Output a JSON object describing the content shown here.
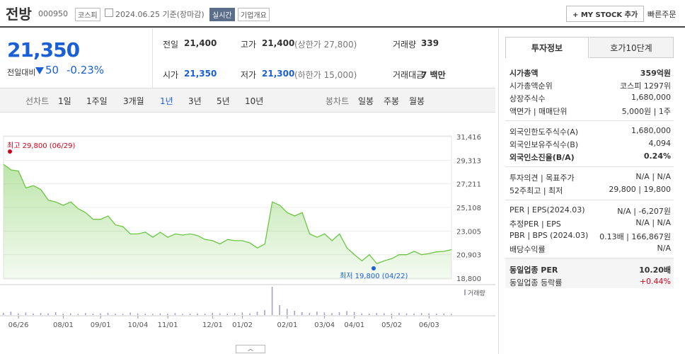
{
  "header": {
    "name": "전방",
    "code": "000950",
    "market": "코스피",
    "date": "2024.06.25 기준(장마감)",
    "realtime": "실시간",
    "overview": "기업개요",
    "mystock": "+ MY STOCK 추가",
    "quick": "빠른주문"
  },
  "price": {
    "current": "21,350",
    "change_label": "전일대비",
    "change": "50",
    "rate": "-0.23%"
  },
  "summary": [
    {
      "label": "전일",
      "value": "21,400"
    },
    {
      "label": "고가",
      "value": "21,400",
      "sub": "(상한가 27,800)"
    },
    {
      "label": "거래량",
      "value": "339"
    },
    {
      "label": "시가",
      "value": "21,350"
    },
    {
      "label": "저가",
      "value": "21,300",
      "sub": "(하한가 15,000)"
    },
    {
      "label": "거래대금",
      "value": "7 백만"
    }
  ],
  "periods": {
    "line_label": "선차트",
    "line": [
      "1일",
      "1주일",
      "3개월",
      "1년",
      "3년",
      "5년",
      "10년"
    ],
    "candle_label": "봉차트",
    "candle": [
      "일봉",
      "주봉",
      "월봉"
    ]
  },
  "chart_data": {
    "type": "line",
    "color": "#6cc644",
    "categories": [
      null,
      null,
      "06/26",
      null,
      null,
      null,
      null,
      null,
      "08/01",
      null,
      null,
      null,
      null,
      "09/01",
      null,
      null,
      null,
      null,
      "10/04",
      null,
      null,
      null,
      "11/01",
      null,
      null,
      null,
      null,
      null,
      "12/01",
      null,
      null,
      null,
      "01/02",
      null,
      null,
      null,
      null,
      null,
      "02/01",
      null,
      null,
      null,
      null,
      "03/04",
      null,
      null,
      null,
      "04/01",
      null,
      null,
      null,
      null,
      "05/02",
      null,
      null,
      null,
      null,
      "06/03",
      null,
      null,
      null
    ],
    "values": [
      28950,
      28450,
      28350,
      26850,
      27050,
      26700,
      25750,
      25600,
      25300,
      25600,
      25000,
      24650,
      24050,
      24050,
      24350,
      23550,
      23400,
      22750,
      22750,
      22900,
      22450,
      22900,
      22450,
      22750,
      22650,
      22750,
      22600,
      22250,
      22150,
      21850,
      22250,
      22150,
      22150,
      21950,
      21500,
      21850,
      25600,
      25300,
      24650,
      24350,
      24650,
      22750,
      22450,
      22750,
      22150,
      22750,
      21500,
      20900,
      20350,
      20900,
      20100,
      20350,
      20550,
      20900,
      20900,
      21200,
      20900,
      21000,
      21150,
      21200,
      21350
    ],
    "ylim": [
      18800,
      31416
    ],
    "yticks": [
      {
        "value": 18800,
        "label": "18,800"
      },
      {
        "value": 20903,
        "label": "20,903"
      },
      {
        "value": 23005,
        "label": "23,005"
      },
      {
        "value": 25108,
        "label": "25,108"
      },
      {
        "value": 27211,
        "label": "27,211"
      },
      {
        "value": 29313,
        "label": "29,313"
      },
      {
        "value": 31416,
        "label": "31,416"
      }
    ],
    "volume_label": "거래량",
    "volume_color": "#a9a0c8",
    "volume": [
      8,
      12,
      6,
      9,
      5,
      7,
      6,
      10,
      5,
      6,
      4,
      7,
      5,
      6,
      8,
      5,
      4,
      9,
      6,
      5,
      4,
      6,
      5,
      7,
      4,
      5,
      6,
      5,
      8,
      6,
      5,
      7,
      9,
      6,
      12,
      18,
      100,
      35,
      22,
      15,
      10,
      8,
      12,
      9,
      7,
      10,
      14,
      11,
      6,
      5,
      7,
      6,
      5,
      8,
      6,
      5,
      7,
      6,
      5,
      6,
      4
    ],
    "vlim": [
      0,
      100
    ],
    "high": "최고 29,800 (06/29)",
    "low": "최저 19,800 (04/22)"
  },
  "info": {
    "tabs": [
      "투자정보",
      "호가10단계"
    ],
    "groups": [
      [
        [
          "시가총액",
          "359억원"
        ],
        [
          "시가총액순위",
          "코스피 1297위"
        ],
        [
          "상장주식수",
          "1,680,000"
        ],
        [
          "액면가 | 매매단위",
          "5,000원 | 1주"
        ]
      ],
      [
        [
          "외국인한도주식수(A)",
          "1,680,000"
        ],
        [
          "외국인보유주식수(B)",
          "4,094"
        ],
        [
          "외국인소진율(B/A)",
          "0.24%"
        ]
      ],
      [
        [
          "투자의견 | 목표주가",
          "N/A | N/A"
        ],
        [
          "52주최고 | 최저",
          "29,800 | 19,800"
        ]
      ],
      [
        [
          "PER | EPS(2024.03)",
          "N/A | -6,207원"
        ],
        [
          "추정PER | EPS",
          "N/A | N/A"
        ],
        [
          "PBR | BPS (2024.03)",
          "0.13배 | 166,867원"
        ],
        [
          "배당수익률",
          "N/A"
        ]
      ],
      [
        [
          "동일업종 PER",
          "10.20배"
        ],
        [
          "동일업종 등락률",
          "+0.44%"
        ]
      ]
    ]
  }
}
